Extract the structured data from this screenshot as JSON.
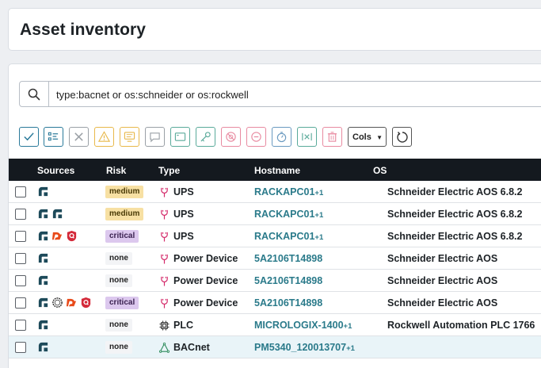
{
  "header": {
    "title": "Asset inventory"
  },
  "search": {
    "query": "type:bacnet or os:schneider or os:rockwell",
    "icon": "search-icon"
  },
  "toolbar": {
    "buttons": [
      {
        "name": "select-all-button",
        "icon": "check-icon",
        "color": "#2a7a9a"
      },
      {
        "name": "list-view-button",
        "icon": "list-icon",
        "color": "#2a7a9a"
      },
      {
        "name": "remove-button",
        "icon": "x-icon",
        "color": "#9aa0a6"
      },
      {
        "name": "alert-button",
        "icon": "warning-icon",
        "color": "#e8b84a"
      },
      {
        "name": "screen-button",
        "icon": "monitor-icon",
        "color": "#e8b84a"
      },
      {
        "name": "comment-button",
        "icon": "comment-icon",
        "color": "#9aa0a6"
      },
      {
        "name": "window-button",
        "icon": "window-icon",
        "color": "#5aaa9a"
      },
      {
        "name": "key-button",
        "icon": "key-icon",
        "color": "#5aaa9a"
      },
      {
        "name": "block-button",
        "icon": "block-icon",
        "color": "#e88aa0"
      },
      {
        "name": "minus-button",
        "icon": "minus-icon",
        "color": "#e88aa0"
      },
      {
        "name": "timer-button",
        "icon": "timer-icon",
        "color": "#6a9ac0"
      },
      {
        "name": "merge-button",
        "icon": "merge-icon",
        "color": "#5aaa9a"
      },
      {
        "name": "delete-button",
        "icon": "trash-icon",
        "color": "#e88aa0"
      }
    ],
    "cols_label": "Cols"
  },
  "table": {
    "columns": {
      "sources": "Sources",
      "risk": "Risk",
      "type": "Type",
      "hostname": "Hostname",
      "os": "OS"
    },
    "rows": [
      {
        "sources": [
          "runzero"
        ],
        "risk": "medium",
        "type": "UPS",
        "type_icon": "plug-icon",
        "hostname": "RACKAPC01",
        "hostname_extra": "+1",
        "os": "Schneider Electric AOS 6.8.2"
      },
      {
        "sources": [
          "runzero",
          "runzero"
        ],
        "risk": "medium",
        "type": "UPS",
        "type_icon": "plug-icon",
        "hostname": "RACKAPC01",
        "hostname_extra": "+1",
        "os": "Schneider Electric AOS 6.8.2"
      },
      {
        "sources": [
          "runzero",
          "dragos",
          "shield"
        ],
        "risk": "critical",
        "type": "UPS",
        "type_icon": "plug-icon",
        "hostname": "RACKAPC01",
        "hostname_extra": "+1",
        "os": "Schneider Electric AOS 6.8.2"
      },
      {
        "sources": [
          "runzero"
        ],
        "risk": "none",
        "type": "Power Device",
        "type_icon": "plug-icon",
        "hostname": "5A2106T14898",
        "hostname_extra": "",
        "os": "Schneider Electric AOS"
      },
      {
        "sources": [
          "runzero"
        ],
        "risk": "none",
        "type": "Power Device",
        "type_icon": "plug-icon",
        "hostname": "5A2106T14898",
        "hostname_extra": "",
        "os": "Schneider Electric AOS"
      },
      {
        "sources": [
          "runzero",
          "ring",
          "dragos",
          "shield"
        ],
        "risk": "critical",
        "type": "Power Device",
        "type_icon": "plug-icon",
        "hostname": "5A2106T14898",
        "hostname_extra": "",
        "os": "Schneider Electric AOS"
      },
      {
        "sources": [
          "runzero"
        ],
        "risk": "none",
        "type": "PLC",
        "type_icon": "chip-icon",
        "hostname": "MICROLOGIX-1400",
        "hostname_extra": "+1",
        "os": "Rockwell Automation PLC 1766"
      },
      {
        "sources": [
          "runzero"
        ],
        "risk": "none",
        "type": "BACnet",
        "type_icon": "network-icon",
        "hostname": "PM5340_120013707",
        "hostname_extra": "+1",
        "os": ""
      }
    ]
  }
}
